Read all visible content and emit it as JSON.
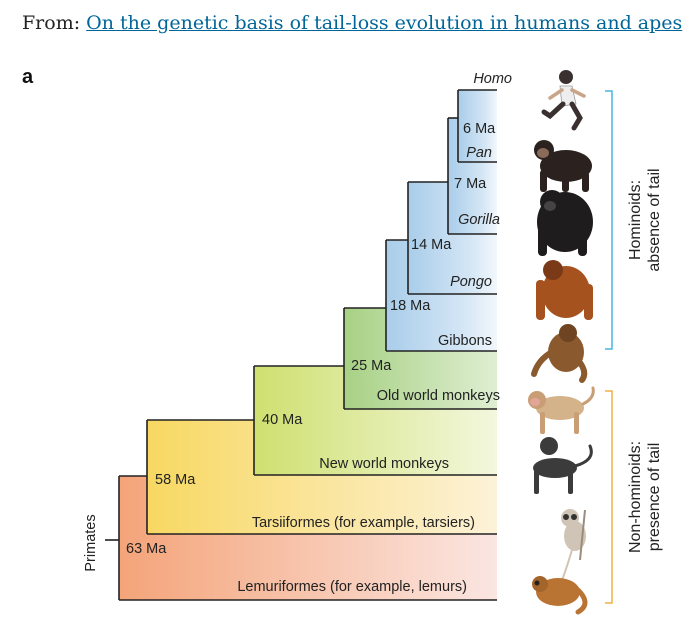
{
  "header": {
    "prefix": "From: ",
    "link_text": "On the genetic basis of tail-loss evolution in humans and apes"
  },
  "panel_label": "a",
  "root_label": "Primates",
  "taxa": [
    {
      "name": "Homo",
      "italic": true
    },
    {
      "name": "Pan",
      "italic": true
    },
    {
      "name": "Gorilla",
      "italic": true
    },
    {
      "name": "Pongo",
      "italic": true
    },
    {
      "name": "Gibbons",
      "italic": false
    },
    {
      "name": "Old world monkeys",
      "italic": false
    },
    {
      "name": "New world monkeys",
      "italic": false
    },
    {
      "name": "Tarsiiformes (for example, tarsiers)",
      "italic": false
    },
    {
      "name": "Lemuriformes (for example, lemurs)",
      "italic": false
    }
  ],
  "divergences": [
    "6 Ma",
    "7 Ma",
    "14 Ma",
    "18 Ma",
    "25 Ma",
    "40 Ma",
    "58 Ma",
    "63 Ma"
  ],
  "groups": {
    "hominoids": {
      "line1": "Hominoids:",
      "line2": "absence of tail",
      "color": "#4bb4e0"
    },
    "non_hominoids": {
      "line1": "Non-hominoids:",
      "line2": "presence of tail",
      "color": "#f0b040"
    }
  },
  "animal_icons": [
    "runner-icon",
    "chimpanzee-icon",
    "gorilla-icon",
    "orangutan-icon",
    "gibbon-icon",
    "macaque-icon",
    "spider-monkey-icon",
    "tarsier-icon",
    "lemur-icon"
  ]
}
